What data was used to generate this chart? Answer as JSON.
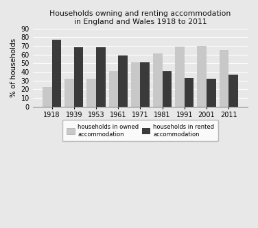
{
  "title_line1": "Households owning and renting accommodation",
  "title_line2": "in England and Wales 1918 to 2011",
  "years": [
    "1918",
    "1939",
    "1953",
    "1961",
    "1971",
    "1981",
    "1991",
    "2001",
    "2011"
  ],
  "owned": [
    23,
    32,
    32,
    41,
    51,
    61,
    69,
    70,
    65
  ],
  "rented": [
    77,
    68,
    68,
    59,
    51,
    41,
    33,
    32,
    37
  ],
  "owned_color": "#c8c8c8",
  "rented_color": "#3a3a3a",
  "ylabel": "% of households",
  "ylim": [
    0,
    90
  ],
  "yticks": [
    0,
    10,
    20,
    30,
    40,
    50,
    60,
    70,
    80,
    90
  ],
  "legend_owned": "households in owned\naccommodation",
  "legend_rented": "households in rented\naccommodation",
  "bar_width": 0.42,
  "background_color": "#e8e8e8",
  "axes_bg_color": "#e8e8e8",
  "grid_color": "#ffffff",
  "title_fontsize": 7.8,
  "tick_fontsize": 7,
  "ylabel_fontsize": 7.5
}
